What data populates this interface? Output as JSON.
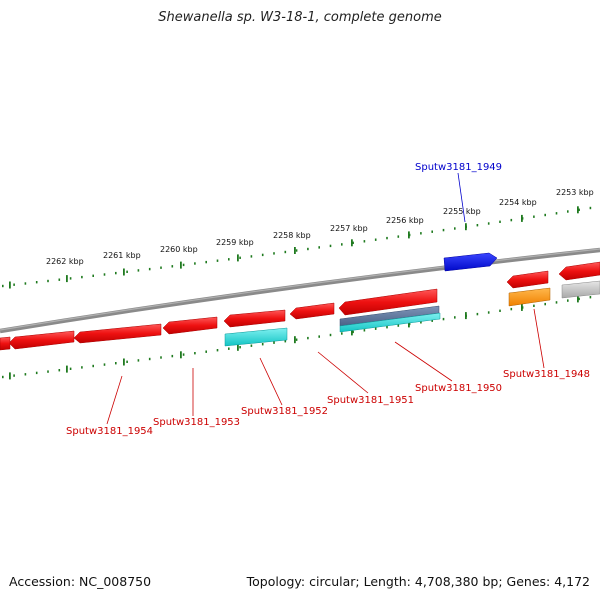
{
  "title": "Shewanella sp. W3-18-1, complete genome",
  "footer": {
    "accession": "Accession: NC_008750",
    "stats": "Topology: circular; Length: 4,708,380 bp; Genes: 4,172"
  },
  "colors": {
    "forward_gene": "#ee1111",
    "selected_gene": "#0a14e6",
    "rna_gene": "#22d0d0",
    "orange_gene": "#ff9a1a",
    "grey_gene": "#b8b8b8",
    "backbone": "#777777",
    "tick": "#1f7a1f",
    "label_red": "#cc0000",
    "label_blue": "#0000cc"
  },
  "tick_labels": [
    "2262 kbp",
    "2261 kbp",
    "2260 kbp",
    "2259 kbp",
    "2258 kbp",
    "2257 kbp",
    "2256 kbp",
    "2255 kbp",
    "2254 kbp",
    "2253 kbp"
  ],
  "gene_labels": {
    "g1949": "Sputw3181_1949",
    "g1948": "Sputw3181_1948",
    "g1950": "Sputw3181_1950",
    "g1951": "Sputw3181_1951",
    "g1952": "Sputw3181_1952",
    "g1953": "Sputw3181_1953",
    "g1954": "Sputw3181_1954"
  }
}
